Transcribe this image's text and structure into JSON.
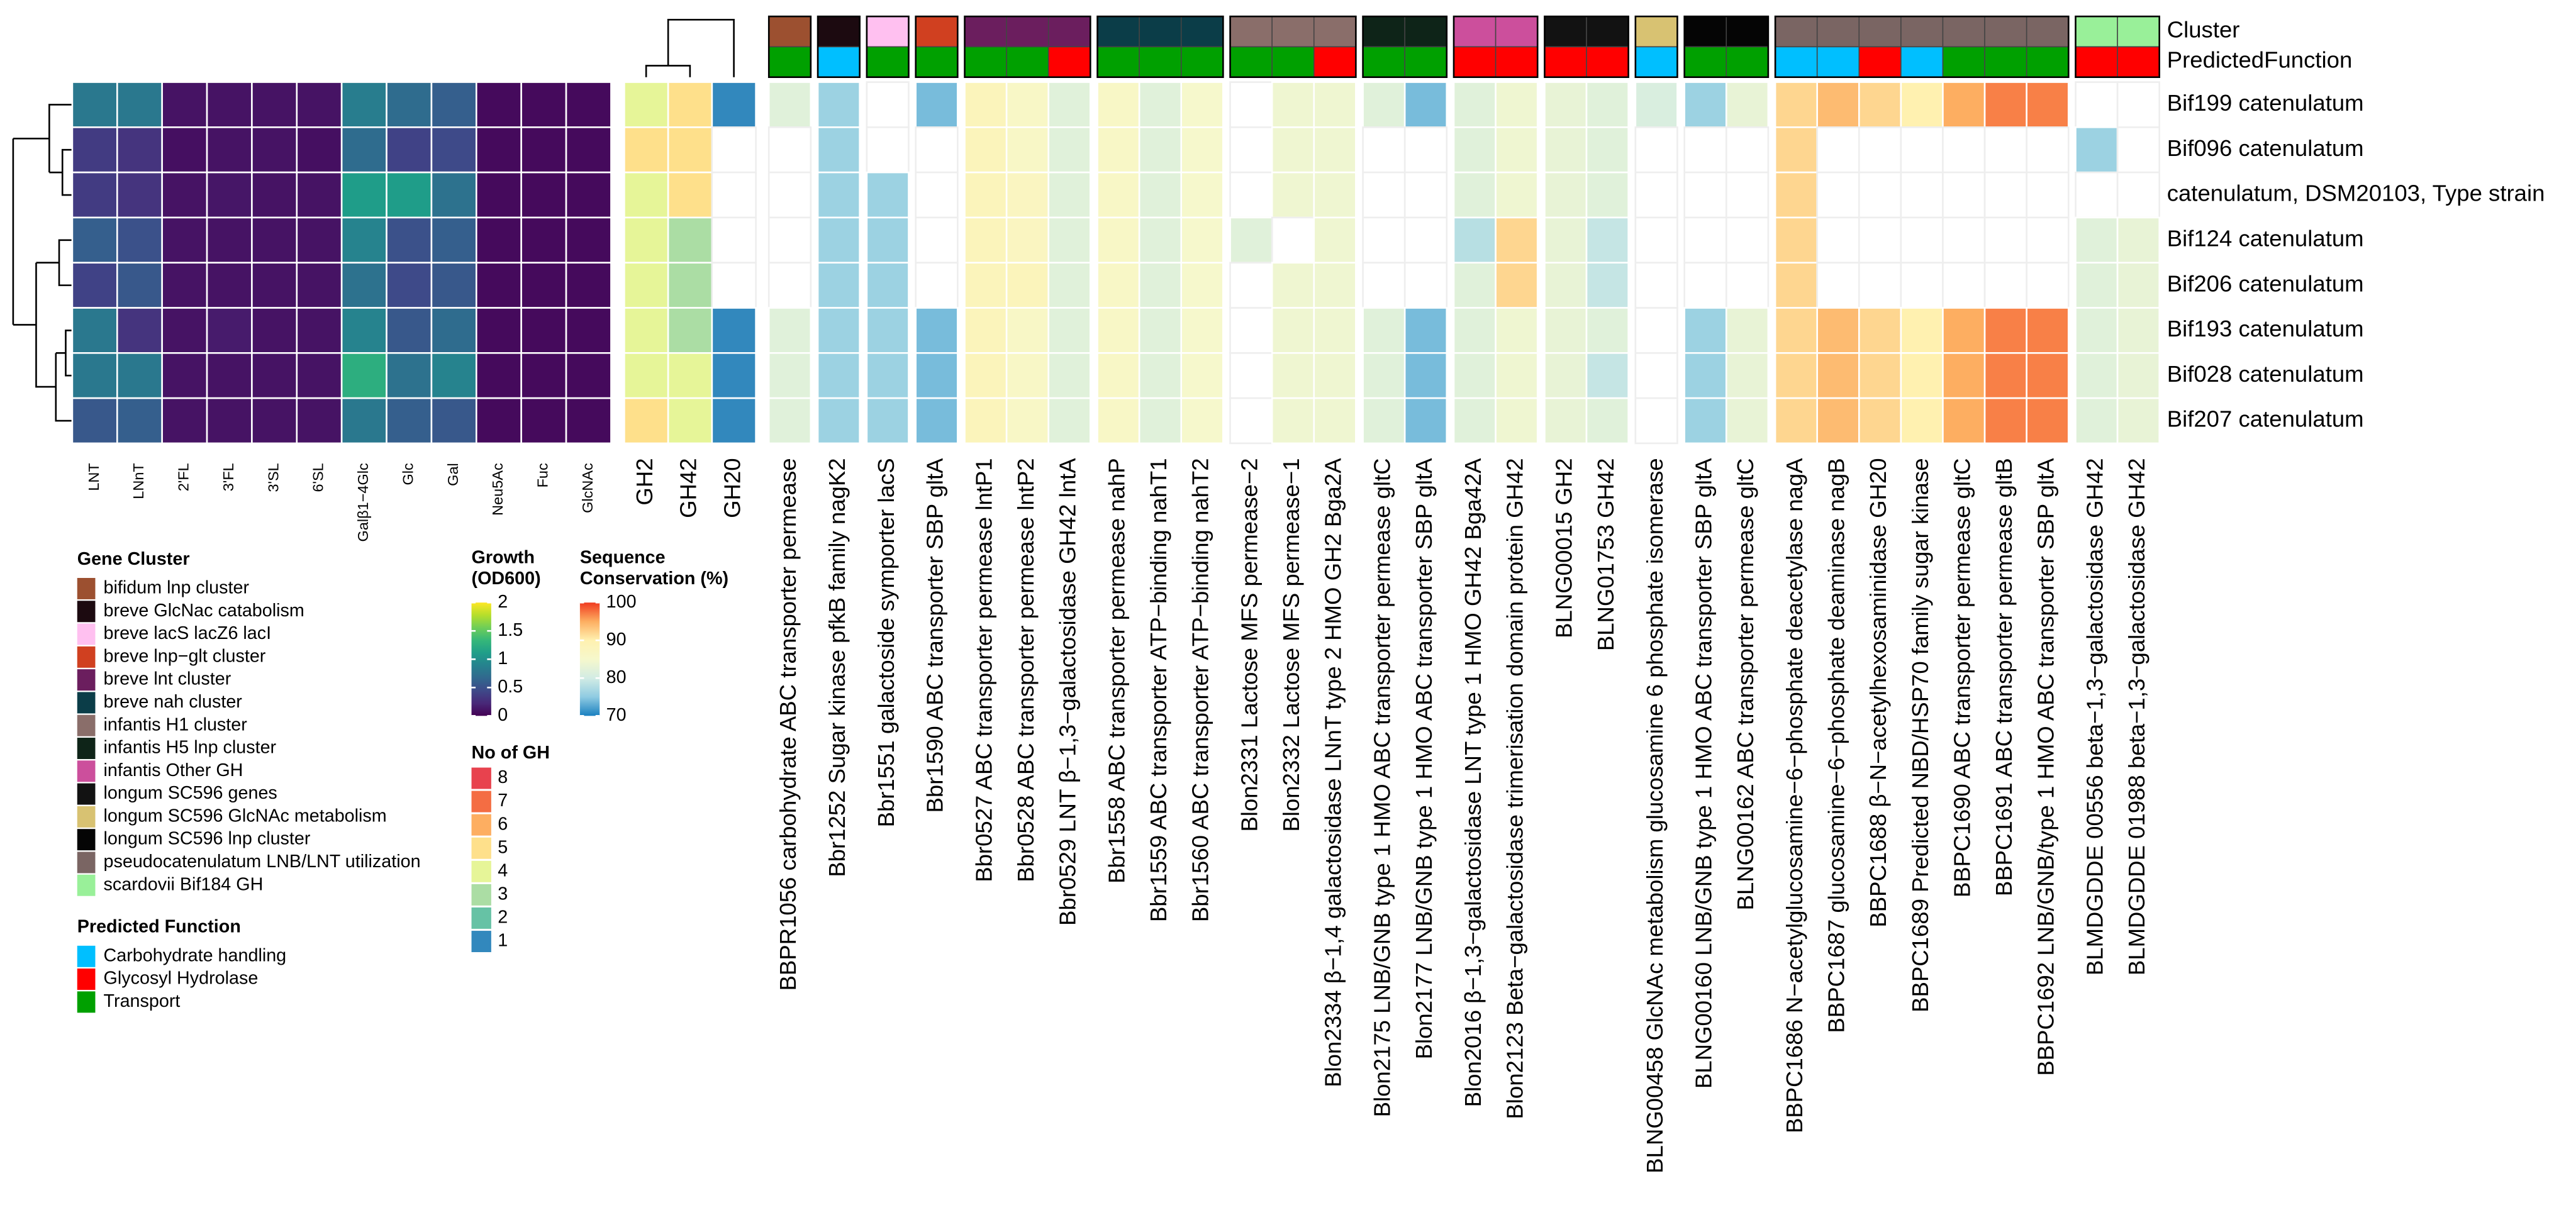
{
  "chart_data": [
    {
      "type": "heatmap",
      "legend_title": [
        "Growth",
        "(OD600)"
      ],
      "columns": [
        "LNT",
        "LNnT",
        "2'FL",
        "3'FL",
        "3'SL",
        "6'SL",
        "Galβ1−4Glc",
        "Glc",
        "Gal",
        "Neu5Ac",
        "Fuc",
        "GlcNAc"
      ],
      "values": [
        [
          0.8,
          0.8,
          0.1,
          0.1,
          0.1,
          0.1,
          0.85,
          0.7,
          0.6,
          0.05,
          0.05,
          0.05
        ],
        [
          0.35,
          0.3,
          0.08,
          0.1,
          0.1,
          0.08,
          0.7,
          0.4,
          0.45,
          0.05,
          0.05,
          0.05
        ],
        [
          0.35,
          0.3,
          0.1,
          0.12,
          0.1,
          0.1,
          1.1,
          1.1,
          0.75,
          0.05,
          0.05,
          0.05
        ],
        [
          0.6,
          0.5,
          0.1,
          0.1,
          0.1,
          0.1,
          0.9,
          0.5,
          0.6,
          0.05,
          0.05,
          0.05
        ],
        [
          0.4,
          0.55,
          0.1,
          0.1,
          0.1,
          0.1,
          0.75,
          0.45,
          0.55,
          0.05,
          0.05,
          0.05
        ],
        [
          0.8,
          0.3,
          0.1,
          0.15,
          0.1,
          0.1,
          0.9,
          0.55,
          0.7,
          0.05,
          0.05,
          0.05
        ],
        [
          0.8,
          0.8,
          0.1,
          0.1,
          0.1,
          0.1,
          1.25,
          0.75,
          0.9,
          0.05,
          0.05,
          0.05
        ],
        [
          0.55,
          0.6,
          0.1,
          0.1,
          0.1,
          0.1,
          0.8,
          0.6,
          0.55,
          0.05,
          0.05,
          0.05
        ]
      ],
      "zlim": [
        0,
        2
      ],
      "zticks": [
        0,
        0.5,
        1,
        1.5,
        2
      ],
      "colorscale": [
        "#440154",
        "#482878",
        "#3e4989",
        "#31688e",
        "#26828e",
        "#1f9e89",
        "#35b779",
        "#6ece58",
        "#b5de2b",
        "#fde725"
      ]
    },
    {
      "type": "discrete-heatmap",
      "legend_title": "No of GH",
      "columns": [
        "GH2",
        "GH42",
        "GH20"
      ],
      "values": [
        [
          4,
          5,
          1
        ],
        [
          5,
          5,
          null
        ],
        [
          4,
          5,
          null
        ],
        [
          4,
          3,
          null
        ],
        [
          4,
          3,
          null
        ],
        [
          4,
          3,
          1
        ],
        [
          4,
          4,
          1
        ],
        [
          5,
          4,
          1
        ]
      ],
      "legend_values": [
        8,
        7,
        6,
        5,
        4,
        3,
        2,
        1
      ],
      "legend_colors": [
        "#e8424e",
        "#f46d43",
        "#fdae61",
        "#fee08b",
        "#e6f598",
        "#abdda4",
        "#66c2a5",
        "#3288bd"
      ]
    },
    {
      "type": "annotated-heatmap",
      "legend_title": [
        "Sequence",
        "Conservation (%)"
      ],
      "rows": [
        "Bif199 catenulatum",
        "Bif096 catenulatum",
        "catenulatum, DSM20103, Type strain",
        "Bif124 catenulatum",
        "Bif206 catenulatum",
        "Bif193 catenulatum",
        "Bif028 catenulatum",
        "Bif207 catenulatum"
      ],
      "columns": [
        "BBPR1056 carbohydrate ABC transporter permease",
        "Bbr1252 Sugar kinase pfkB family nagK2",
        "Bbr1551 galactoside symporter lacS",
        "Bbr1590 ABC transporter SBP gltA",
        "Bbr0527 ABC transporter permease lntP1",
        "Bbr0528 ABC transporter permease lntP2",
        "Bbr0529 LNT β−1,3−galactosidase GH42 lntA",
        "Bbr1558 ABC transporter permease nahP",
        "Bbr1559 ABC transporter ATP−binding nahT1",
        "Bbr1560 ABC transporter ATP−binding nahT2",
        "Blon2331 Lactose MFS permease−2",
        "Blon2332 Lactose MFS permease−1",
        "Blon2334 β−1,4 galactosidase LNnT type 2 HMO GH2 Bga2A",
        "Blon2175 LNB/GNB type 1 HMO ABC transporter permease gltC",
        "Blon2177 LNB/GNB type 1 HMO ABC transporter SBP gltA",
        "Blon2016 β−1,3−galactosidase LNT type 1 HMO GH42 Bga42A",
        "Blon2123 Beta−galactosidase trimerisation domain protein GH42",
        "BLNG00015 GH2",
        "BLNG01753 GH42",
        "BLNG00458 GlcNAc metabolism glucosamine 6 phosphate isomerase",
        "BLNG00160 LNB/GNB type 1 HMO ABC transporter SBP gltA",
        "BLNG00162 ABC transporter permease gltC",
        "BBPC1686 N−acetylglucosamine−6−phosphate deacetylase nagA",
        "BBPC1687 glucosamine−6−phosphate deaminase nagB",
        "BBPC1688 β−N−acetylhexosaminidase GH20",
        "BBPC1689 Predicted NBD/HSP70 family sugar kinase",
        "BBPC1690 ABC transporter permease gltC",
        "BBPC1691 ABC transporter permease gltB",
        "BBPC1692 LNB/GNB/type 1 HMO ABC transporter SBP gltA",
        "BLMDGDDE 00556 beta−1,3−galactosidase GH42",
        "BLMDGDDE 01988 beta−1,3−galactosidase GH42"
      ],
      "values": [
        [
          82,
          76,
          null,
          74,
          88,
          86,
          82,
          86,
          82,
          85,
          null,
          84,
          84,
          82,
          74,
          82,
          84,
          83,
          82,
          81,
          76,
          83,
          92,
          94,
          92,
          90,
          95,
          97,
          97,
          null,
          null
        ],
        [
          null,
          76,
          null,
          null,
          88,
          86,
          82,
          86,
          82,
          85,
          null,
          84,
          84,
          null,
          null,
          82,
          84,
          83,
          82,
          null,
          null,
          null,
          92,
          null,
          null,
          null,
          null,
          null,
          null,
          76,
          null
        ],
        [
          null,
          76,
          76,
          null,
          88,
          87,
          82,
          86,
          82,
          85,
          null,
          84,
          84,
          null,
          null,
          82,
          84,
          83,
          82,
          null,
          null,
          null,
          92,
          null,
          null,
          null,
          null,
          null,
          null,
          null,
          null
        ],
        [
          null,
          76,
          76,
          null,
          88,
          87,
          82,
          86,
          82,
          85,
          82,
          null,
          84,
          null,
          null,
          78,
          92,
          83,
          79,
          null,
          null,
          null,
          92,
          null,
          null,
          null,
          null,
          null,
          null,
          82,
          83
        ],
        [
          null,
          76,
          76,
          null,
          88,
          88,
          82,
          86,
          82,
          85,
          null,
          84,
          84,
          null,
          null,
          82,
          92,
          83,
          79,
          null,
          null,
          null,
          92,
          null,
          null,
          null,
          null,
          null,
          null,
          82,
          83
        ],
        [
          82,
          76,
          76,
          74,
          88,
          86,
          82,
          86,
          82,
          85,
          null,
          84,
          84,
          82,
          74,
          82,
          84,
          83,
          82,
          null,
          76,
          83,
          92,
          94,
          92,
          90,
          95,
          97,
          97,
          82,
          83
        ],
        [
          82,
          76,
          76,
          74,
          88,
          86,
          82,
          86,
          82,
          85,
          null,
          84,
          84,
          82,
          74,
          82,
          84,
          83,
          79,
          null,
          76,
          83,
          92,
          94,
          92,
          90,
          95,
          97,
          97,
          82,
          83
        ],
        [
          82,
          76,
          76,
          74,
          88,
          86,
          82,
          86,
          82,
          85,
          null,
          84,
          84,
          82,
          74,
          82,
          84,
          83,
          82,
          null,
          76,
          83,
          92,
          94,
          92,
          90,
          95,
          97,
          97,
          82,
          83
        ]
      ],
      "zlim": [
        70,
        100
      ],
      "zticks": [
        70,
        80,
        90,
        100
      ],
      "colorscale": [
        "#1a80c0",
        "#8fcbe2",
        "#d2ece4",
        "#f6f8cc",
        "#fff1b0",
        "#fdae61",
        "#f03b20"
      ],
      "annotation_labels": [
        "Cluster",
        "PredictedFunction"
      ],
      "column_cluster": [
        "bifidum lnp cluster",
        "breve GlcNac catabolism",
        "breve lacS lacZ6 lacI",
        "breve lnp−glt cluster",
        "breve lnt cluster",
        "breve lnt cluster",
        "breve lnt cluster",
        "breve nah cluster",
        "breve nah cluster",
        "breve nah cluster",
        "infantis H1 cluster",
        "infantis H1 cluster",
        "infantis H1 cluster",
        "infantis H5 lnp cluster",
        "infantis H5 lnp cluster",
        "infantis Other GH",
        "infantis Other GH",
        "longum SC596 genes",
        "longum SC596 genes",
        "longum SC596 GlcNAc metabolism",
        "longum SC596 lnp cluster",
        "longum SC596 lnp cluster",
        "pseudocatenulatum LNB/LNT utilization",
        "pseudocatenulatum LNB/LNT utilization",
        "pseudocatenulatum LNB/LNT utilization",
        "pseudocatenulatum LNB/LNT utilization",
        "pseudocatenulatum LNB/LNT utilization",
        "pseudocatenulatum LNB/LNT utilization",
        "pseudocatenulatum LNB/LNT utilization",
        "scardovii Bif184 GH",
        "scardovii Bif184 GH"
      ],
      "column_function": [
        "Transport",
        "Carbohydrate handling",
        "Transport",
        "Transport",
        "Transport",
        "Transport",
        "Glycosyl Hydrolase",
        "Transport",
        "Transport",
        "Transport",
        "Transport",
        "Transport",
        "Glycosyl Hydrolase",
        "Transport",
        "Transport",
        "Glycosyl Hydrolase",
        "Glycosyl Hydrolase",
        "Glycosyl Hydrolase",
        "Glycosyl Hydrolase",
        "Carbohydrate handling",
        "Transport",
        "Transport",
        "Carbohydrate handling",
        "Carbohydrate handling",
        "Glycosyl Hydrolase",
        "Carbohydrate handling",
        "Transport",
        "Transport",
        "Transport",
        "Glycosyl Hydrolase",
        "Glycosyl Hydrolase"
      ],
      "cluster_legend": {
        "title": "Gene Cluster",
        "items": [
          {
            "name": "bifidum lnp cluster",
            "color": "#9c5030"
          },
          {
            "name": "breve GlcNac catabolism",
            "color": "#1c0a10"
          },
          {
            "name": "breve lacS lacZ6 lacI",
            "color": "#ffc0f0"
          },
          {
            "name": "breve lnp−glt cluster",
            "color": "#d04020"
          },
          {
            "name": "breve lnt cluster",
            "color": "#6b1e5e"
          },
          {
            "name": "breve nah cluster",
            "color": "#0b3d48"
          },
          {
            "name": "infantis H1 cluster",
            "color": "#8a6e6a"
          },
          {
            "name": "infantis H5 lnp cluster",
            "color": "#0e2418"
          },
          {
            "name": "infantis Other GH",
            "color": "#cc4f9c"
          },
          {
            "name": "longum SC596 genes",
            "color": "#121212"
          },
          {
            "name": "longum SC596 GlcNAc metabolism",
            "color": "#d8c272"
          },
          {
            "name": "longum SC596 lnp cluster",
            "color": "#050505"
          },
          {
            "name": "pseudocatenulatum LNB/LNT utilization",
            "color": "#7a6563"
          },
          {
            "name": "scardovii Bif184 GH",
            "color": "#99f099"
          }
        ]
      },
      "function_legend": {
        "title": "Predicted Function",
        "items": [
          {
            "name": "Carbohydrate handling",
            "color": "#00bfff"
          },
          {
            "name": "Glycosyl Hydrolase",
            "color": "#ff0000"
          },
          {
            "name": "Transport",
            "color": "#00a000"
          }
        ]
      }
    }
  ]
}
